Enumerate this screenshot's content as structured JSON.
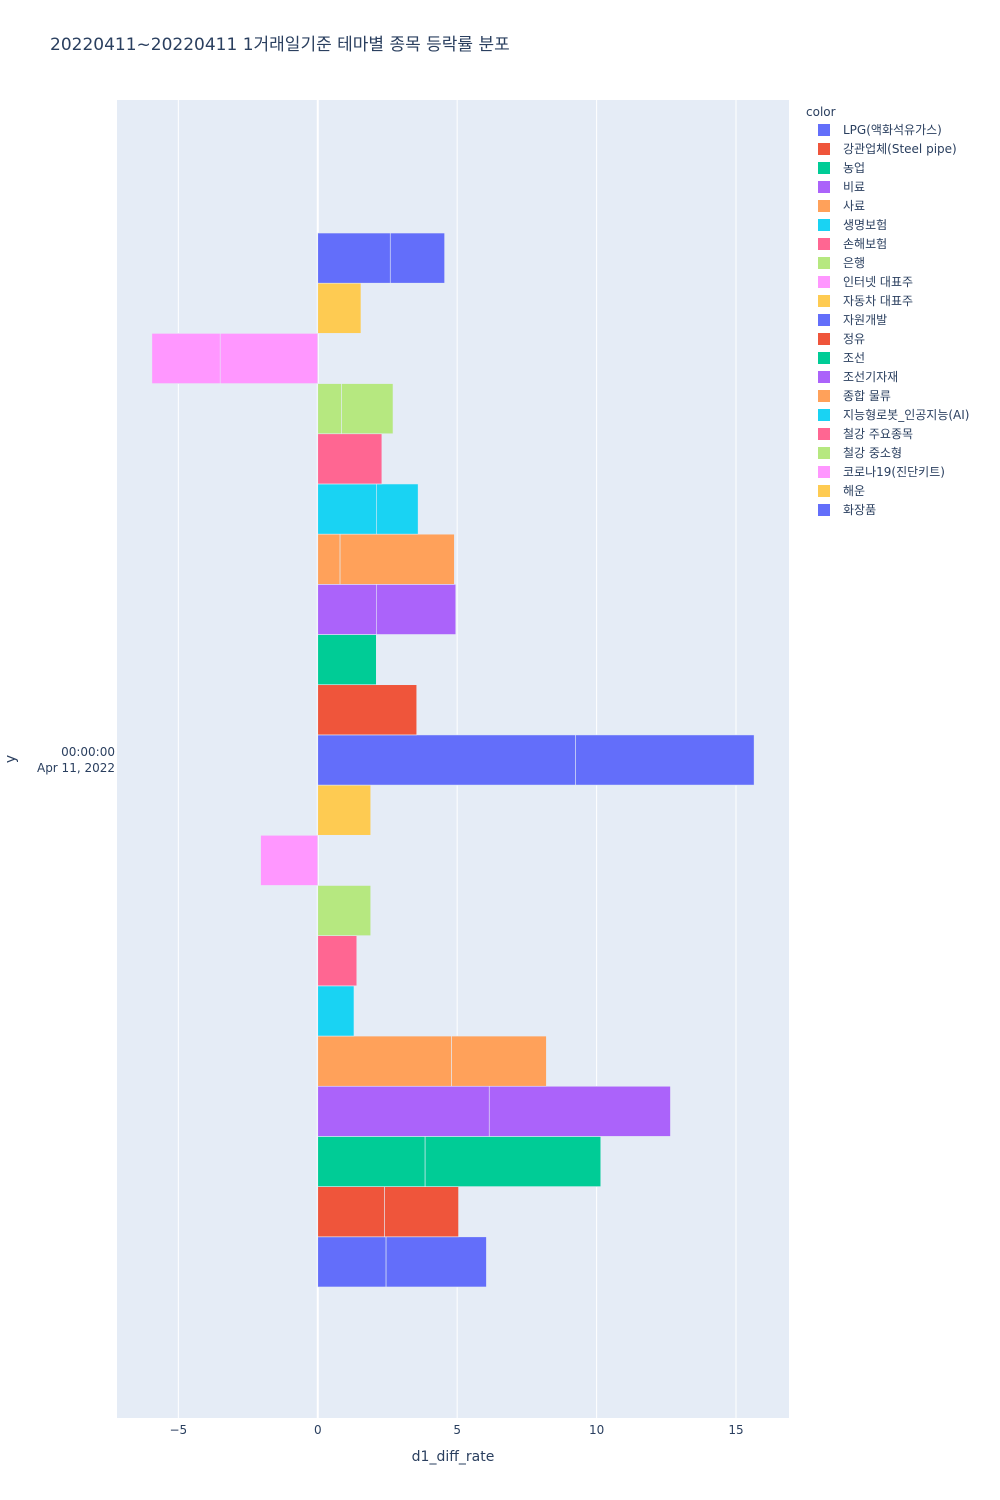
{
  "chart_data": {
    "type": "bar",
    "orientation": "horizontal",
    "barmode": "relative",
    "title": "20220411~20220411 1거래일기준 테마별 종목 등락률 분포",
    "xlabel": "d1_diff_rate",
    "ylabel": "y",
    "xlim": [
      -7.2,
      16.9
    ],
    "x_ticks": [
      -5,
      0,
      5,
      10,
      15
    ],
    "x_tick_labels": [
      "−5",
      "0",
      "5",
      "10",
      "15"
    ],
    "y_tick_label": [
      "00:00:00",
      "Apr 11, 2022"
    ],
    "grid": true,
    "legend": {
      "title": "color",
      "position": "top-right"
    },
    "series": [
      {
        "name": "LPG(액화석유가스)",
        "color": "#636efa",
        "values": [
          2.45,
          3.6
        ]
      },
      {
        "name": "강관업체(Steel pipe)",
        "color": "#EF553B",
        "values": [
          2.4,
          2.65
        ]
      },
      {
        "name": "농업",
        "color": "#00cc96",
        "values": [
          3.85,
          6.3
        ]
      },
      {
        "name": "비료",
        "color": "#ab63fa",
        "values": [
          6.15,
          6.5
        ]
      },
      {
        "name": "사료",
        "color": "#FFA15A",
        "values": [
          4.8,
          3.4
        ]
      },
      {
        "name": "생명보험",
        "color": "#19d3f3",
        "values": [
          1.3
        ]
      },
      {
        "name": "손해보험",
        "color": "#FF6692",
        "values": [
          1.4
        ]
      },
      {
        "name": "은행",
        "color": "#B6E880",
        "values": [
          1.9
        ]
      },
      {
        "name": "인터넷 대표주",
        "color": "#FF97FF",
        "values": [
          -2.05
        ]
      },
      {
        "name": "자동차 대표주",
        "color": "#FECB52",
        "values": [
          1.9
        ]
      },
      {
        "name": "자원개발",
        "color": "#636efa",
        "values": [
          9.25,
          6.4
        ]
      },
      {
        "name": "정유",
        "color": "#EF553B",
        "values": [
          3.55
        ]
      },
      {
        "name": "조선",
        "color": "#00cc96",
        "values": [
          2.1
        ]
      },
      {
        "name": "조선기자재",
        "color": "#ab63fa",
        "values": [
          2.1,
          2.85
        ]
      },
      {
        "name": "종합 물류",
        "color": "#FFA15A",
        "values": [
          0.8,
          4.1
        ]
      },
      {
        "name": "지능형로봇_인공지능(AI)",
        "color": "#19d3f3",
        "values": [
          2.1,
          1.5
        ]
      },
      {
        "name": "철강 주요종목",
        "color": "#FF6692",
        "values": [
          2.3
        ]
      },
      {
        "name": "철강 중소형",
        "color": "#B6E880",
        "values": [
          0.85,
          1.85
        ]
      },
      {
        "name": "코로나19(진단키트)",
        "color": "#FF97FF",
        "values": [
          -3.5,
          -2.45
        ]
      },
      {
        "name": "해운",
        "color": "#FECB52",
        "values": [
          1.55
        ]
      },
      {
        "name": "화장품",
        "color": "#636efa",
        "values": [
          2.6,
          1.95
        ]
      }
    ]
  }
}
